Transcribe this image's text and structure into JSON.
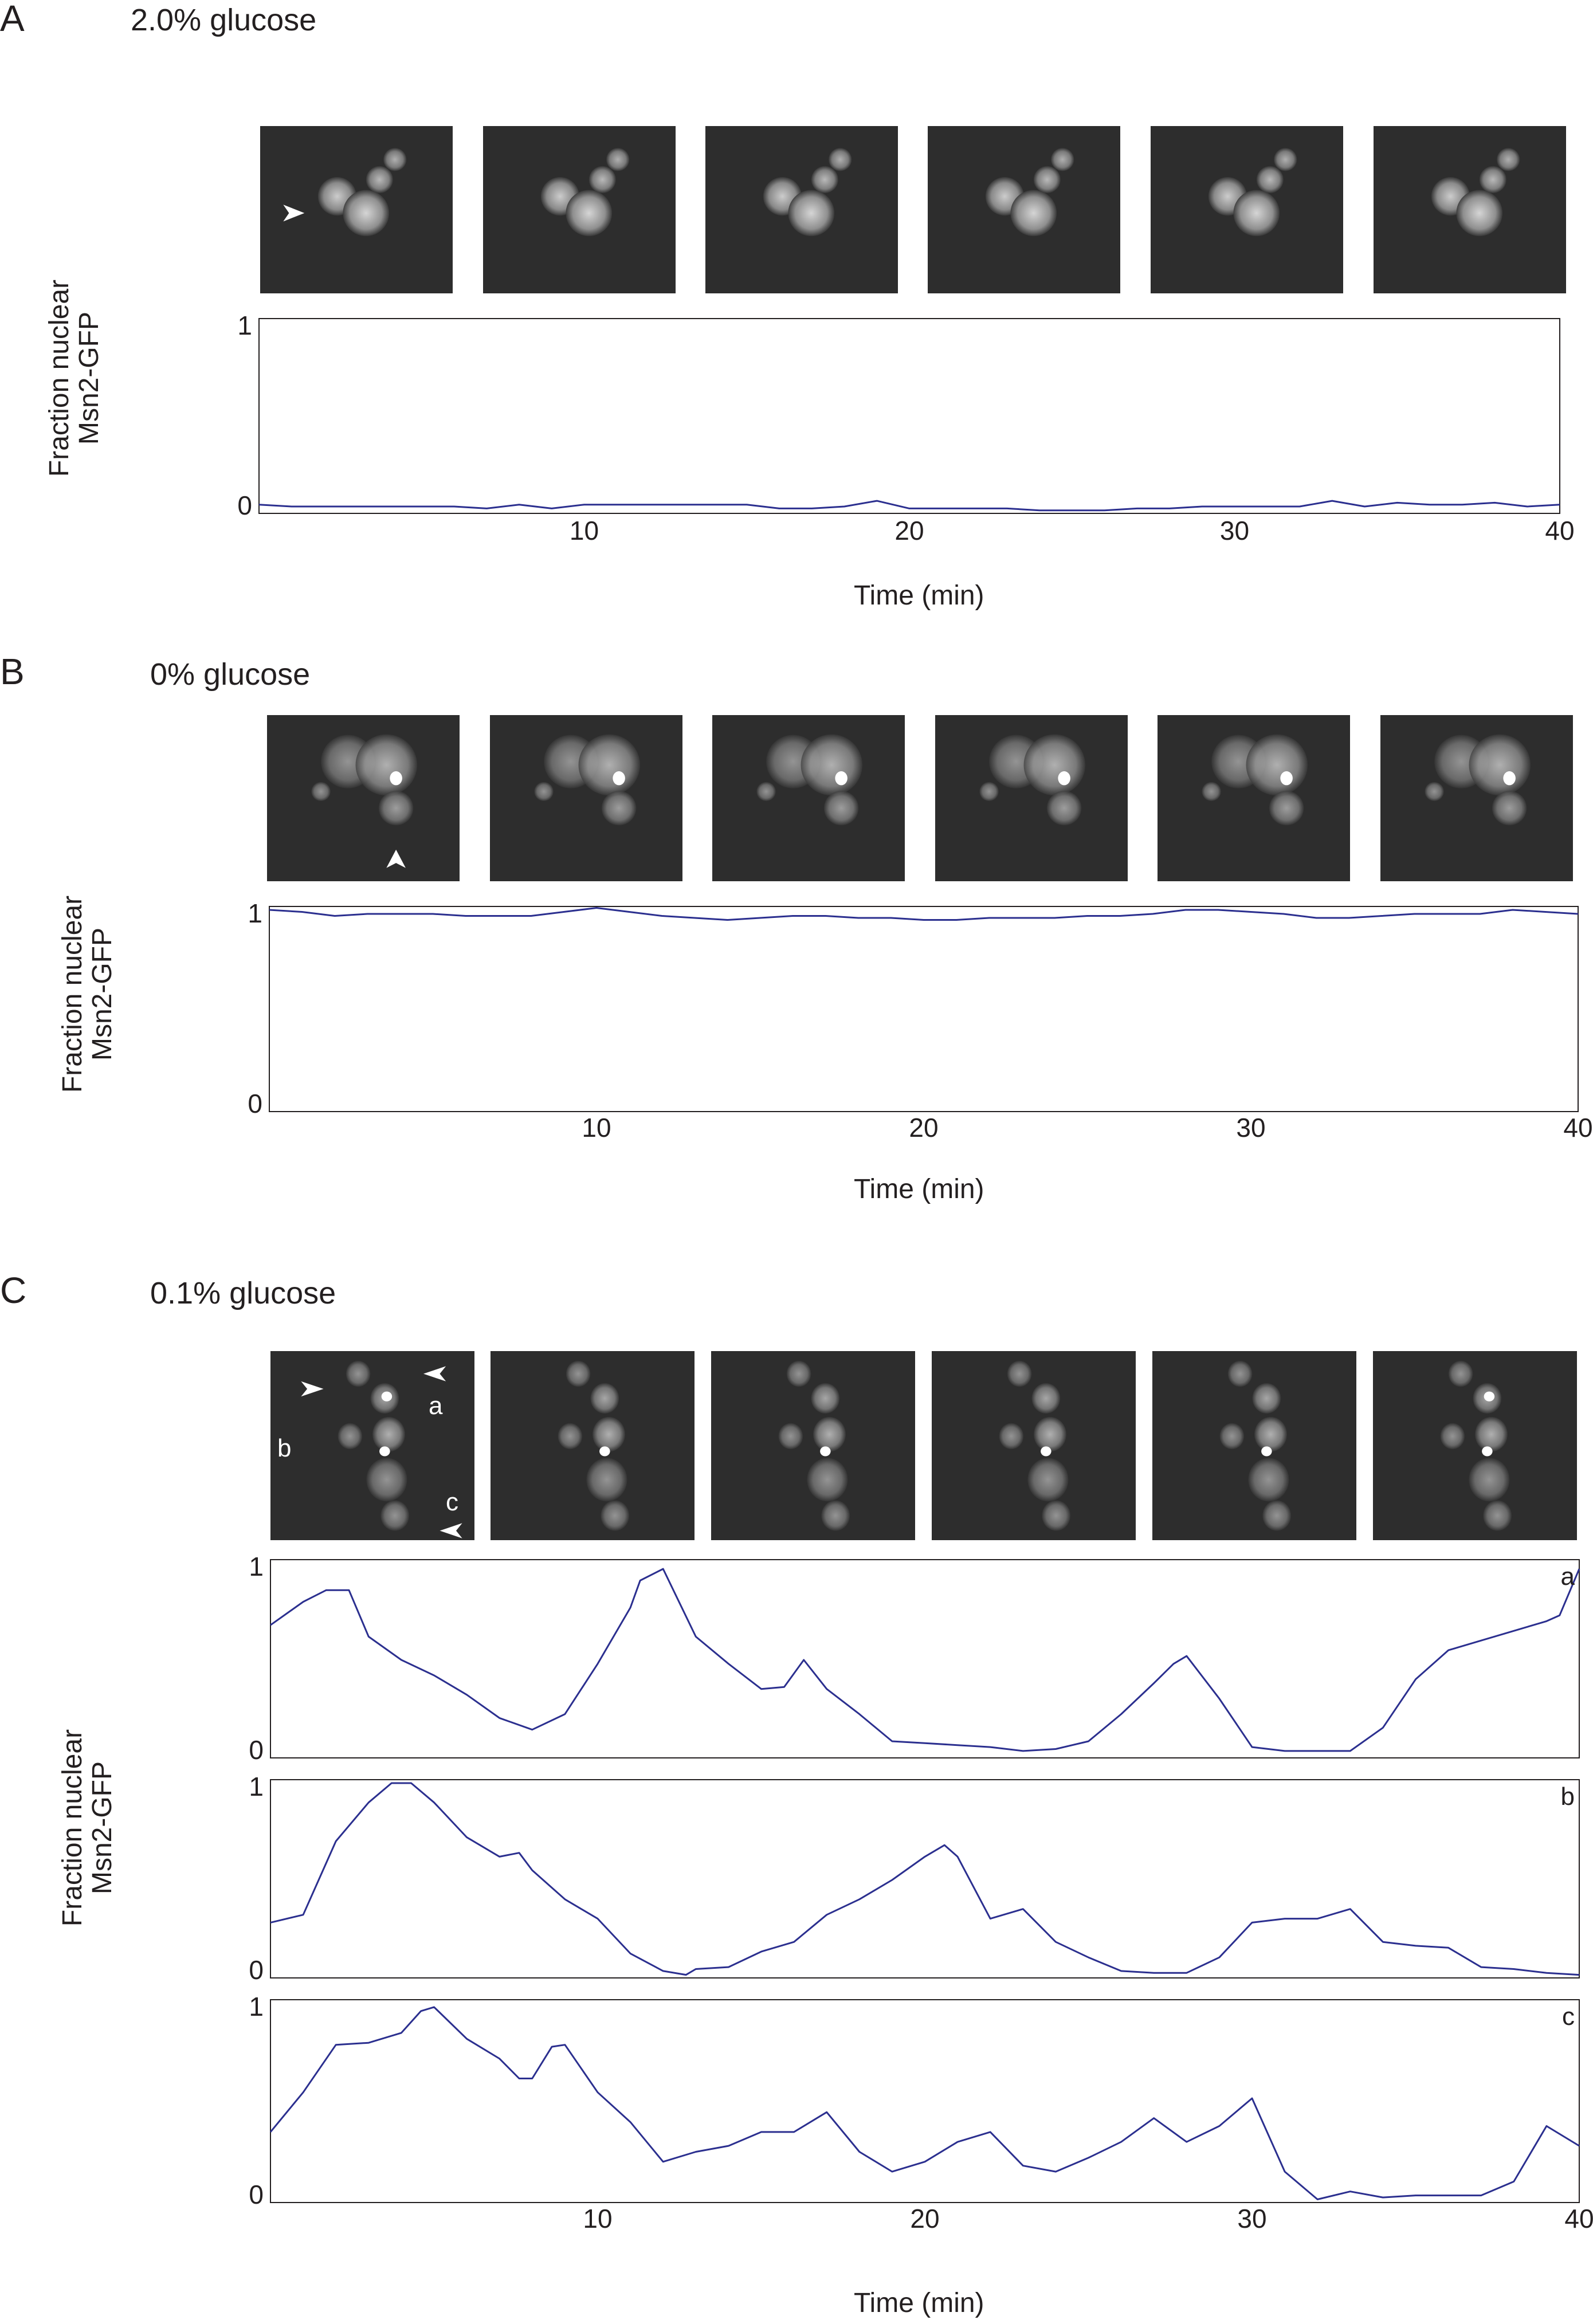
{
  "panels": [
    {
      "letter": "A",
      "condition": "2.0% glucose",
      "ylabel": [
        "Fraction nuclear",
        "Msn2-GFP"
      ],
      "xlabel": "Time (min)"
    },
    {
      "letter": "B",
      "condition": "0% glucose",
      "ylabel": [
        "Fraction nuclear",
        "Msn2-GFP"
      ],
      "xlabel": "Time (min)"
    },
    {
      "letter": "C",
      "condition": "0.1% glucose",
      "ylabel": [
        "Fraction nuclear",
        "Msn2-GFP"
      ],
      "xlabel": "Time (min)",
      "cell_labels": [
        "a",
        "b",
        "c"
      ]
    }
  ],
  "chart_data": [
    {
      "type": "line",
      "panel": "A",
      "xlabel": "Time (min)",
      "ylabel": "Fraction nuclear Msn2-GFP",
      "xlim": [
        0,
        40
      ],
      "ylim": [
        0,
        1
      ],
      "xticks": [
        10,
        20,
        30,
        40
      ],
      "yticks": [
        0,
        1
      ],
      "line_color": "#2b2f8f",
      "series": [
        {
          "x": [
            0,
            1,
            2,
            3,
            4,
            5,
            6,
            7,
            8,
            9,
            10,
            11,
            12,
            13,
            14,
            15,
            16,
            17,
            18,
            19,
            20,
            21,
            22,
            23,
            24,
            25,
            26,
            27,
            28,
            29,
            30,
            31,
            32,
            33,
            34,
            35,
            36,
            37,
            38,
            39,
            40
          ],
          "values": [
            0.04,
            0.03,
            0.03,
            0.03,
            0.03,
            0.03,
            0.03,
            0.02,
            0.04,
            0.02,
            0.04,
            0.04,
            0.04,
            0.04,
            0.04,
            0.04,
            0.02,
            0.02,
            0.03,
            0.06,
            0.02,
            0.02,
            0.02,
            0.02,
            0.01,
            0.01,
            0.01,
            0.02,
            0.02,
            0.03,
            0.03,
            0.03,
            0.03,
            0.06,
            0.03,
            0.05,
            0.04,
            0.04,
            0.05,
            0.03,
            0.04
          ]
        }
      ]
    },
    {
      "type": "line",
      "panel": "B",
      "xlabel": "Time (min)",
      "ylabel": "Fraction nuclear Msn2-GFP",
      "xlim": [
        0,
        40
      ],
      "ylim": [
        0,
        1
      ],
      "xticks": [
        10,
        20,
        30,
        40
      ],
      "yticks": [
        0,
        1
      ],
      "line_color": "#2b2f8f",
      "series": [
        {
          "x": [
            0,
            1,
            2,
            3,
            4,
            5,
            6,
            7,
            8,
            9,
            10,
            11,
            12,
            13,
            14,
            15,
            16,
            17,
            18,
            19,
            20,
            21,
            22,
            23,
            24,
            25,
            26,
            27,
            28,
            29,
            30,
            31,
            32,
            33,
            34,
            35,
            36,
            37,
            38,
            39,
            40
          ],
          "values": [
            1.0,
            0.99,
            0.97,
            0.98,
            0.98,
            0.98,
            0.97,
            0.97,
            0.97,
            0.99,
            1.01,
            0.99,
            0.97,
            0.96,
            0.95,
            0.96,
            0.97,
            0.97,
            0.96,
            0.96,
            0.95,
            0.95,
            0.96,
            0.96,
            0.96,
            0.97,
            0.97,
            0.98,
            1.0,
            1.0,
            0.99,
            0.98,
            0.96,
            0.96,
            0.97,
            0.98,
            0.98,
            0.98,
            1.0,
            0.99,
            0.98
          ]
        }
      ]
    },
    {
      "type": "line",
      "panel": "C",
      "cell": "a",
      "xlim": [
        0,
        40
      ],
      "ylim": [
        0,
        1
      ],
      "yticks": [
        0,
        1
      ],
      "line_color": "#2b2f8f",
      "series": [
        {
          "x": [
            0,
            1,
            1.7,
            2.4,
            3,
            4,
            5,
            6,
            7,
            8,
            9,
            10,
            11,
            11.3,
            12,
            13,
            14,
            15,
            15.7,
            16.3,
            17,
            18,
            19,
            20,
            21,
            22,
            23,
            24,
            25,
            26,
            27,
            27.6,
            28,
            29,
            30,
            31,
            32,
            33,
            34,
            35,
            36,
            37,
            38,
            39,
            39.4,
            40
          ],
          "values": [
            0.68,
            0.8,
            0.86,
            0.86,
            0.62,
            0.5,
            0.42,
            0.32,
            0.2,
            0.14,
            0.22,
            0.48,
            0.77,
            0.91,
            0.97,
            0.62,
            0.48,
            0.35,
            0.36,
            0.5,
            0.35,
            0.22,
            0.08,
            0.07,
            0.06,
            0.05,
            0.03,
            0.04,
            0.08,
            0.22,
            0.38,
            0.48,
            0.52,
            0.3,
            0.05,
            0.03,
            0.03,
            0.03,
            0.15,
            0.4,
            0.55,
            0.6,
            0.65,
            0.7,
            0.73,
            0.97
          ]
        }
      ]
    },
    {
      "type": "line",
      "panel": "C",
      "cell": "b",
      "ylabel": "Fraction nuclear Msn2-GFP",
      "xlim": [
        0,
        40
      ],
      "ylim": [
        0,
        1
      ],
      "yticks": [
        0,
        1
      ],
      "line_color": "#2b2f8f",
      "series": [
        {
          "x": [
            0,
            1,
            2,
            3,
            3.7,
            4.3,
            5,
            6,
            7,
            7.6,
            8,
            9,
            10,
            11,
            12,
            12.7,
            13,
            14,
            15,
            16,
            17,
            18,
            19,
            20,
            20.6,
            21,
            22,
            23,
            24,
            25,
            26,
            27,
            28,
            29,
            30,
            31,
            32,
            33,
            34,
            35,
            36,
            37,
            38,
            39,
            40
          ],
          "values": [
            0.28,
            0.32,
            0.7,
            0.9,
            1.0,
            1.0,
            0.9,
            0.72,
            0.62,
            0.64,
            0.55,
            0.4,
            0.3,
            0.12,
            0.03,
            0.01,
            0.04,
            0.05,
            0.13,
            0.18,
            0.32,
            0.4,
            0.5,
            0.62,
            0.68,
            0.62,
            0.3,
            0.35,
            0.18,
            0.1,
            0.03,
            0.02,
            0.02,
            0.1,
            0.28,
            0.3,
            0.3,
            0.35,
            0.18,
            0.16,
            0.15,
            0.05,
            0.04,
            0.02,
            0.01
          ]
        }
      ]
    },
    {
      "type": "line",
      "panel": "C",
      "cell": "c",
      "xlabel": "Time (min)",
      "xlim": [
        0,
        40
      ],
      "ylim": [
        0,
        1
      ],
      "xticks": [
        10,
        20,
        30,
        40
      ],
      "yticks": [
        0,
        1
      ],
      "line_color": "#2b2f8f",
      "series": [
        {
          "x": [
            0,
            1,
            2,
            3,
            4,
            4.6,
            5,
            6,
            7,
            7.6,
            8,
            8.6,
            9,
            10,
            11,
            12,
            13,
            14,
            15,
            16,
            17,
            18,
            19,
            20,
            21,
            22,
            23,
            24,
            25,
            26,
            27,
            28,
            29,
            30,
            31,
            32,
            33,
            34,
            35,
            36,
            37,
            38,
            39,
            40
          ],
          "values": [
            0.35,
            0.55,
            0.79,
            0.8,
            0.85,
            0.96,
            0.98,
            0.82,
            0.72,
            0.62,
            0.62,
            0.78,
            0.79,
            0.55,
            0.4,
            0.2,
            0.25,
            0.28,
            0.35,
            0.35,
            0.45,
            0.25,
            0.15,
            0.2,
            0.3,
            0.35,
            0.18,
            0.15,
            0.22,
            0.3,
            0.42,
            0.3,
            0.38,
            0.52,
            0.15,
            0.01,
            0.05,
            0.02,
            0.03,
            0.03,
            0.03,
            0.1,
            0.38,
            0.28
          ]
        }
      ]
    }
  ],
  "images": {
    "panelA": {
      "frames": 6,
      "background": "#2d2d2d"
    },
    "panelB": {
      "frames": 6,
      "background": "#2d2d2d"
    },
    "panelC": {
      "frames": 6,
      "background": "#2d2d2d"
    }
  }
}
